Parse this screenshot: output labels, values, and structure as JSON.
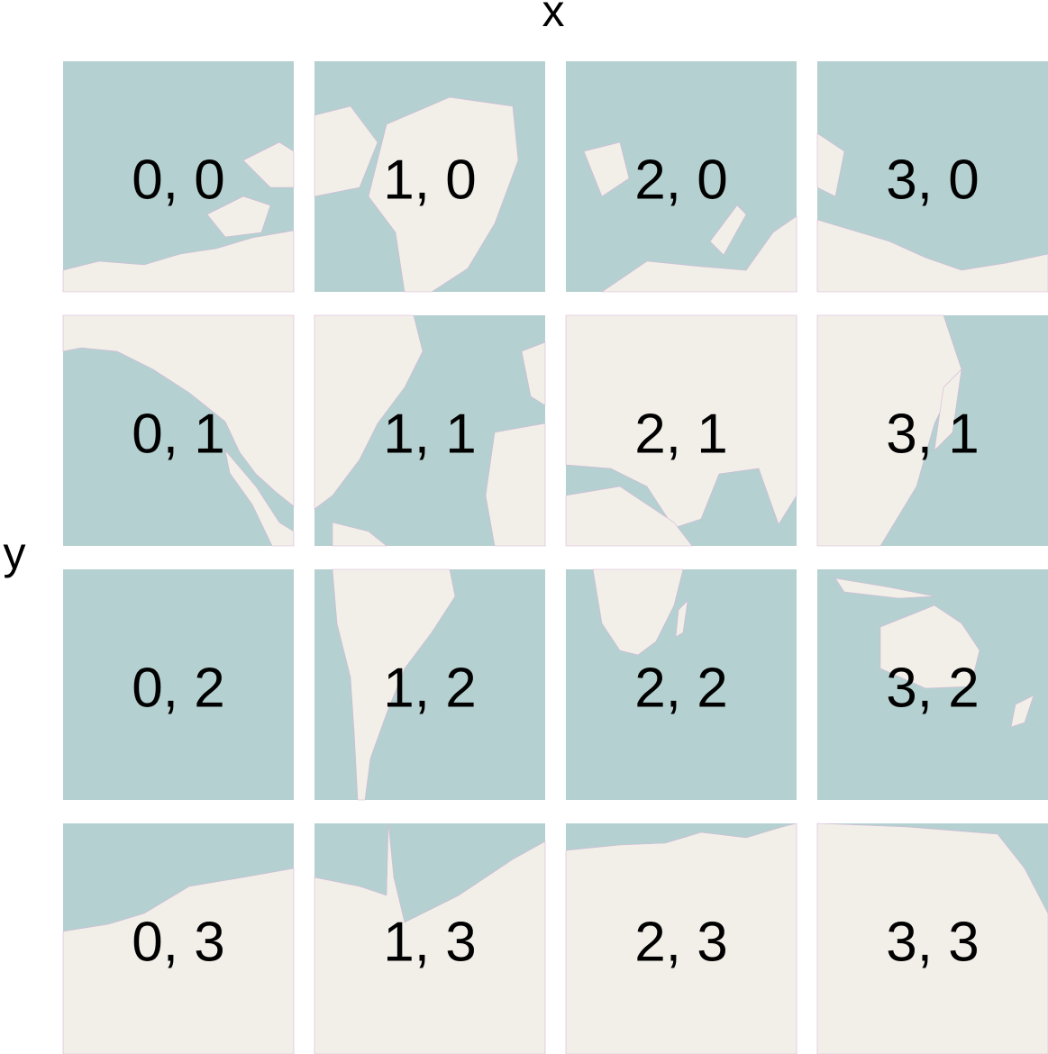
{
  "axis_labels": {
    "x": "x",
    "y": "y"
  },
  "tiles": [
    "0, 0",
    "1, 0",
    "2, 0",
    "3, 0",
    "0, 1",
    "1, 1",
    "2, 1",
    "3, 1",
    "0, 2",
    "1, 2",
    "2, 2",
    "3, 2",
    "0, 3",
    "1, 3",
    "2, 3",
    "3, 3"
  ]
}
